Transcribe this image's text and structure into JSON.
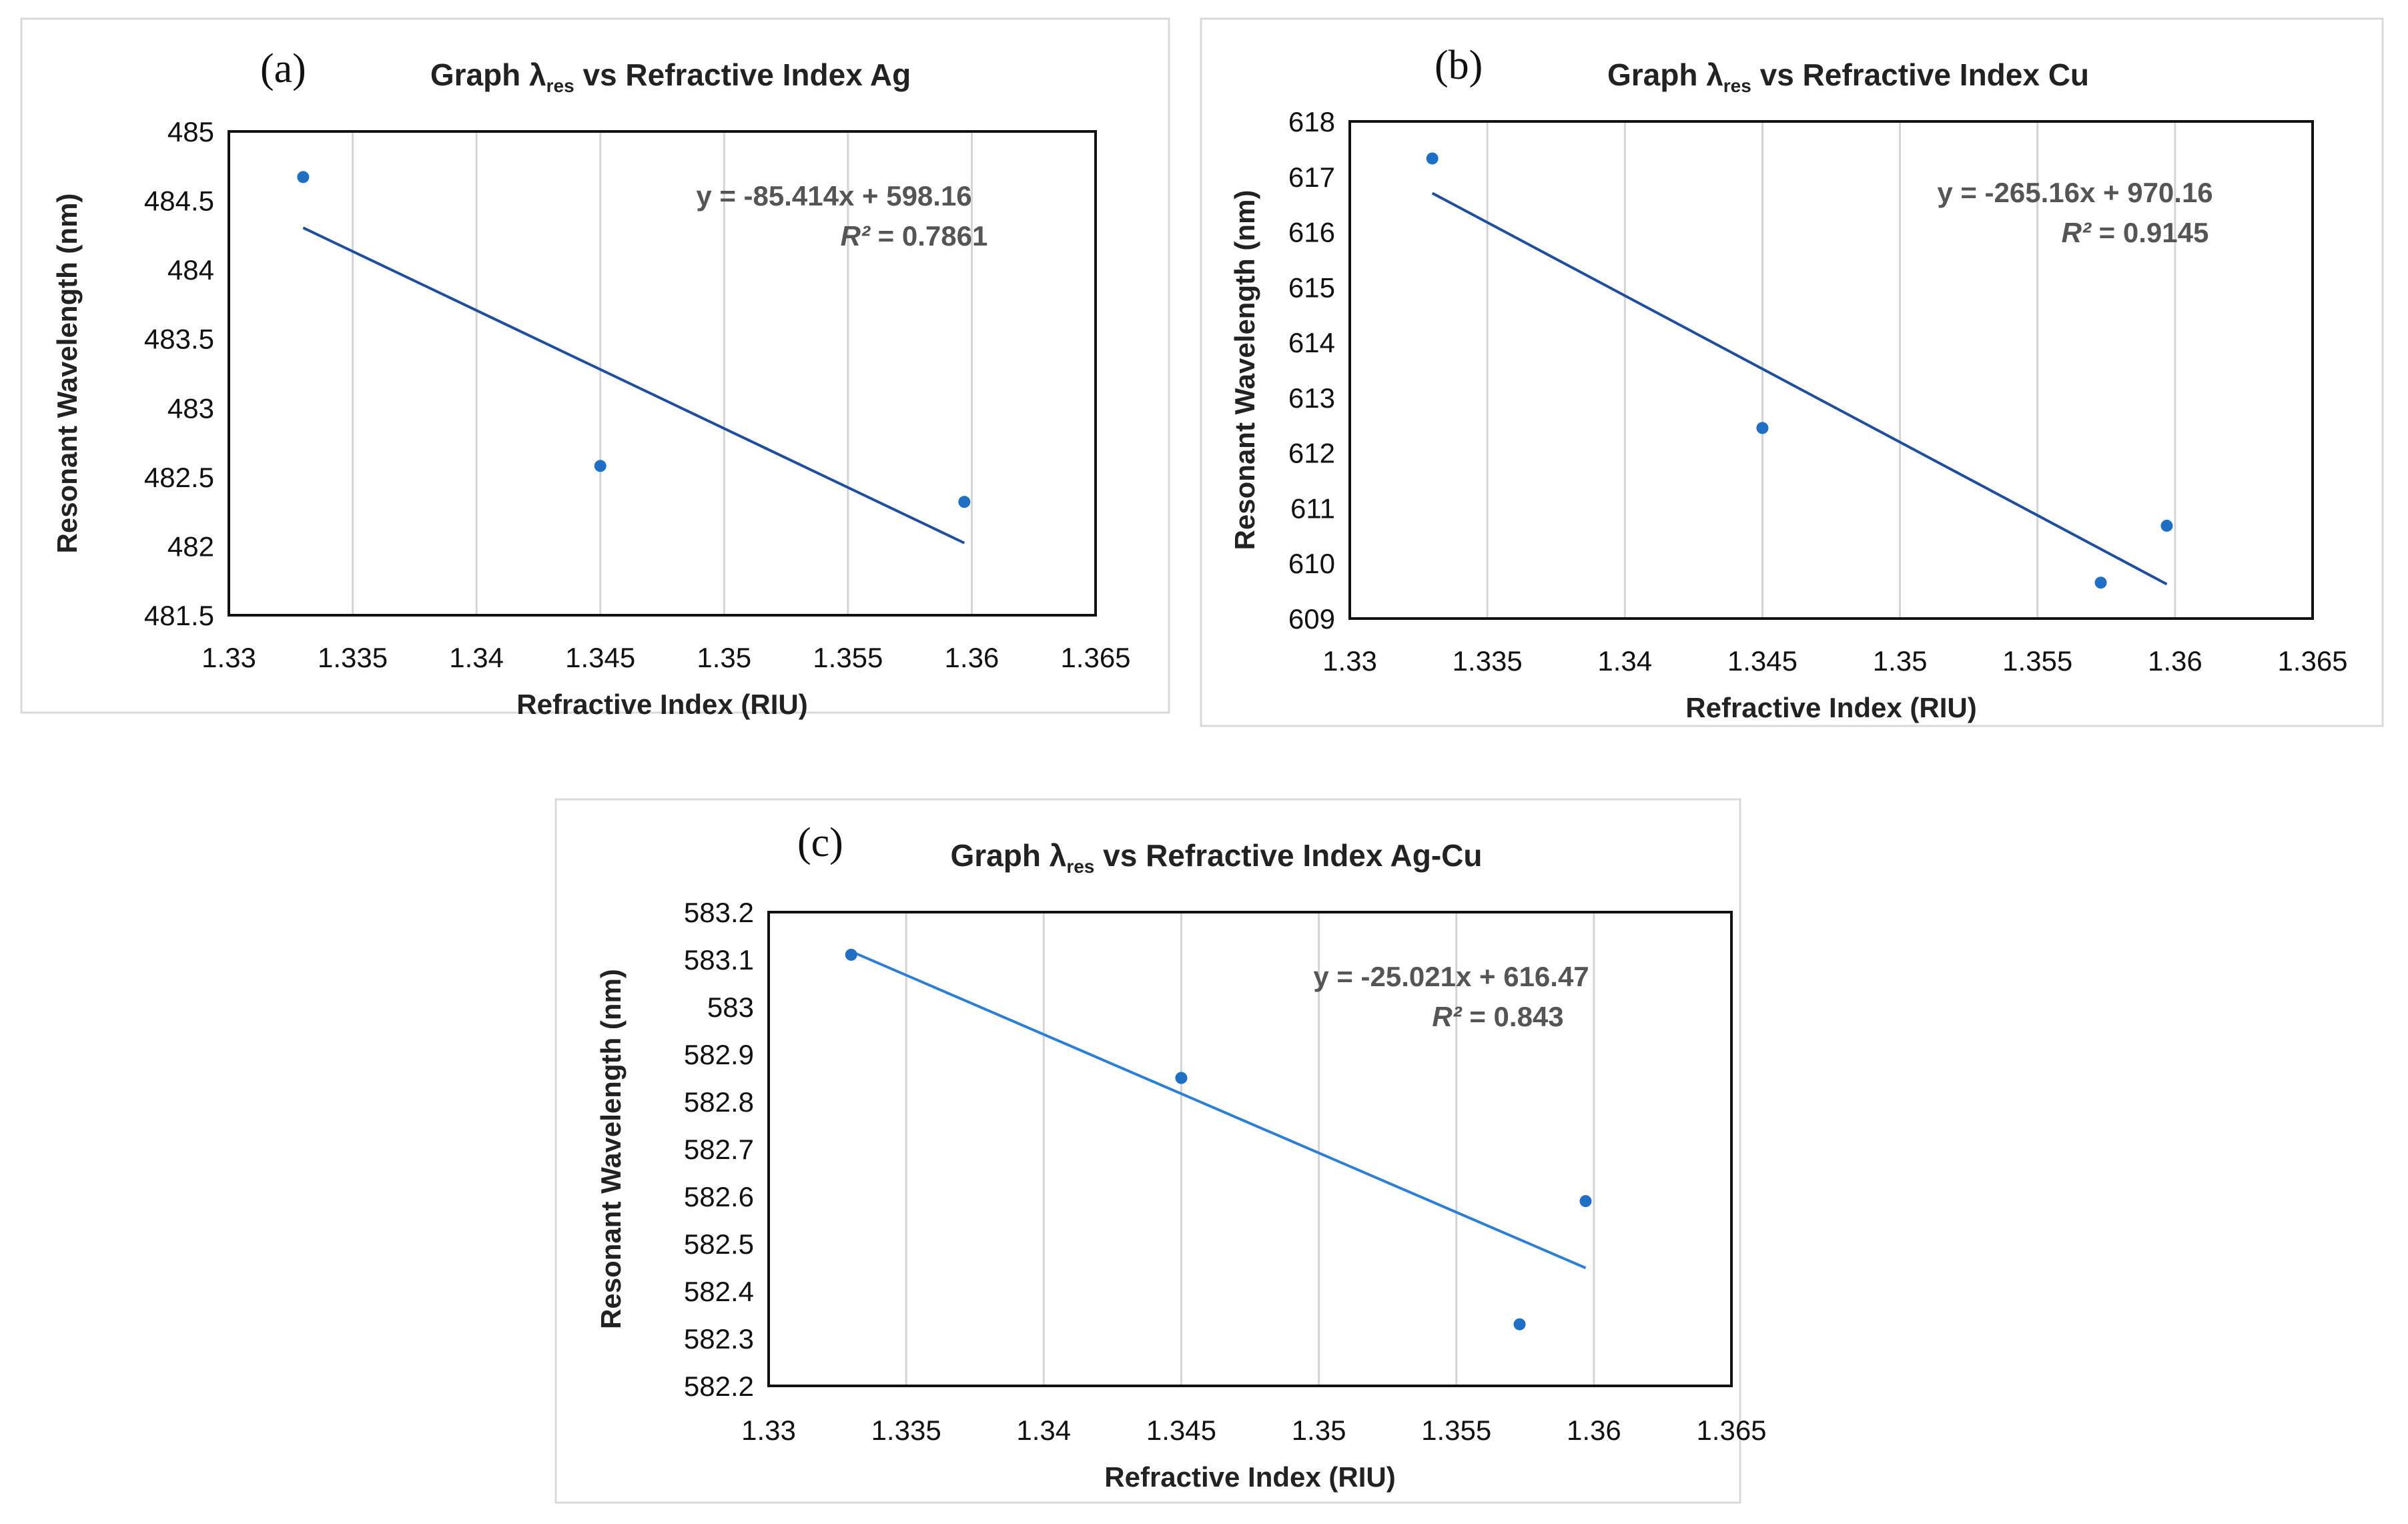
{
  "colors": {
    "marker": "#1f6fc4",
    "trendline_ab": "#1f4e9c",
    "trendline_c": "#2d7fd3",
    "grid": "#d4d4d4"
  },
  "chart_data": [
    {
      "panel": "(a)",
      "type": "scatter",
      "title_main": "Graph λ",
      "title_sub": "res",
      "title_rest": " vs Refractive Index Ag",
      "xlabel": "Refractive Index (RIU)",
      "ylabel": "Resonant Wavelength (nm)",
      "xlim": [
        1.33,
        1.365
      ],
      "ylim": [
        481.5,
        485
      ],
      "xticks": [
        1.33,
        1.335,
        1.34,
        1.345,
        1.35,
        1.355,
        1.36,
        1.365
      ],
      "xtick_labels": [
        "1.33",
        "1.335",
        "1.34",
        "1.345",
        "1.35",
        "1.355",
        "1.36",
        "1.365"
      ],
      "yticks": [
        481.5,
        482,
        482.5,
        483,
        483.5,
        484,
        484.5,
        485
      ],
      "ytick_labels": [
        "481.5",
        "482",
        "482.5",
        "483",
        "483.5",
        "484",
        "484.5",
        "485"
      ],
      "points": [
        {
          "x": 1.333,
          "y": 484.67
        },
        {
          "x": 1.345,
          "y": 482.58
        },
        {
          "x": 1.3597,
          "y": 482.32
        }
      ],
      "trendline": {
        "slope": -85.414,
        "intercept": 598.16,
        "x_start": 1.333,
        "x_end": 1.3597
      },
      "equation_text": "y = -85.414x + 598.16",
      "r2_label": "R²",
      "r2_value": " = 0.7861",
      "grid": "vertical"
    },
    {
      "panel": "(b)",
      "type": "scatter",
      "title_main": "Graph λ",
      "title_sub": "res",
      "title_rest": " vs Refractive Index Cu",
      "xlabel": "Refractive Index (RIU)",
      "ylabel": "Resonant Wavelength (nm)",
      "xlim": [
        1.33,
        1.365
      ],
      "ylim": [
        609,
        618
      ],
      "xticks": [
        1.33,
        1.335,
        1.34,
        1.345,
        1.35,
        1.355,
        1.36,
        1.365
      ],
      "xtick_labels": [
        "1.33",
        "1.335",
        "1.34",
        "1.345",
        "1.35",
        "1.355",
        "1.36",
        "1.365"
      ],
      "yticks": [
        609,
        610,
        611,
        612,
        613,
        614,
        615,
        616,
        617,
        618
      ],
      "ytick_labels": [
        "609",
        "610",
        "611",
        "612",
        "613",
        "614",
        "615",
        "616",
        "617",
        "618"
      ],
      "points": [
        {
          "x": 1.333,
          "y": 617.33
        },
        {
          "x": 1.345,
          "y": 612.45
        },
        {
          "x": 1.3573,
          "y": 609.65
        },
        {
          "x": 1.3597,
          "y": 610.68
        }
      ],
      "trendline": {
        "slope": -265.16,
        "intercept": 970.16,
        "x_start": 1.333,
        "x_end": 1.3597
      },
      "equation_text": "y = -265.16x + 970.16",
      "r2_label": "R²",
      "r2_value": " = 0.9145",
      "grid": "vertical"
    },
    {
      "panel": "(c)",
      "type": "scatter",
      "title_main": "Graph λ",
      "title_sub": "res",
      "title_rest": " vs Refractive Index Ag-Cu",
      "xlabel": "Refractive Index (RIU)",
      "ylabel": "Resonant Wavelength (nm)",
      "xlim": [
        1.33,
        1.365
      ],
      "ylim": [
        582.2,
        583.2
      ],
      "xticks": [
        1.33,
        1.335,
        1.34,
        1.345,
        1.35,
        1.355,
        1.36,
        1.365
      ],
      "xtick_labels": [
        "1.33",
        "1.335",
        "1.34",
        "1.345",
        "1.35",
        "1.355",
        "1.36",
        "1.365"
      ],
      "yticks": [
        582.2,
        582.3,
        582.4,
        582.5,
        582.6,
        582.7,
        582.8,
        582.9,
        583,
        583.1,
        583.2
      ],
      "ytick_labels": [
        "582.2",
        "582.3",
        "582.4",
        "582.5",
        "582.6",
        "582.7",
        "582.8",
        "582.9",
        "583",
        "583.1",
        "583.2"
      ],
      "points": [
        {
          "x": 1.333,
          "y": 583.11
        },
        {
          "x": 1.345,
          "y": 582.85
        },
        {
          "x": 1.3573,
          "y": 582.33
        },
        {
          "x": 1.3597,
          "y": 582.59
        }
      ],
      "trendline": {
        "slope": -25.021,
        "intercept": 616.47,
        "x_start": 1.333,
        "x_end": 1.3597
      },
      "equation_text": "y = -25.021x + 616.47",
      "r2_label": "R²",
      "r2_value": " = 0.843",
      "grid": "vertical"
    }
  ]
}
